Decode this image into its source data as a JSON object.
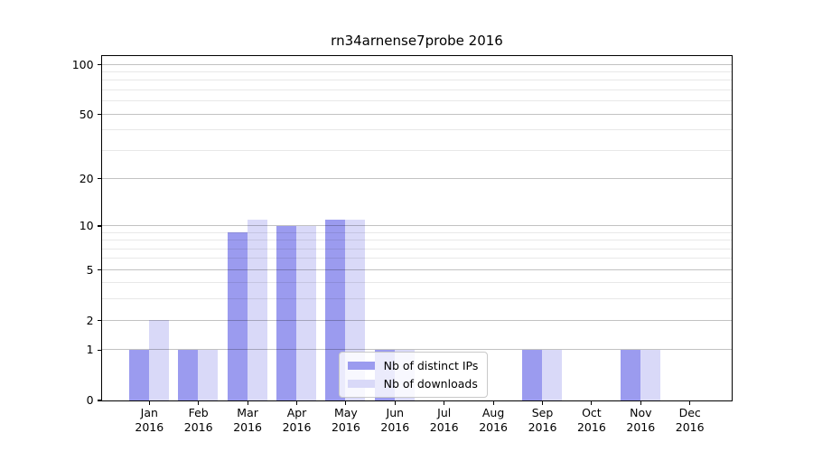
{
  "chart_data": {
    "type": "bar",
    "title": "rn34arnense7probe 2016",
    "categories": [
      "Jan",
      "Feb",
      "Mar",
      "Apr",
      "May",
      "Jun",
      "Jul",
      "Aug",
      "Sep",
      "Oct",
      "Nov",
      "Dec"
    ],
    "category_year": "2016",
    "series": [
      {
        "name": "Nb of distinct IPs",
        "color": "#9b9bef",
        "values": [
          1,
          1,
          9,
          10,
          11,
          1,
          0,
          0,
          1,
          0,
          1,
          0
        ]
      },
      {
        "name": "Nb of downloads",
        "color": "#d9d9f8",
        "values": [
          2,
          1,
          11,
          10,
          11,
          1,
          0,
          0,
          1,
          0,
          1,
          0
        ]
      }
    ],
    "xlabel": "",
    "ylabel": "",
    "yscale": "log1p",
    "ylim": [
      0,
      114
    ],
    "yticks": [
      0,
      1,
      2,
      5,
      10,
      20,
      50,
      100
    ],
    "yticks_minor": [
      3,
      4,
      6,
      7,
      8,
      9,
      30,
      40,
      60,
      70,
      80,
      90
    ],
    "grid": "horizontal",
    "legend": {
      "position": "lower-center"
    }
  }
}
